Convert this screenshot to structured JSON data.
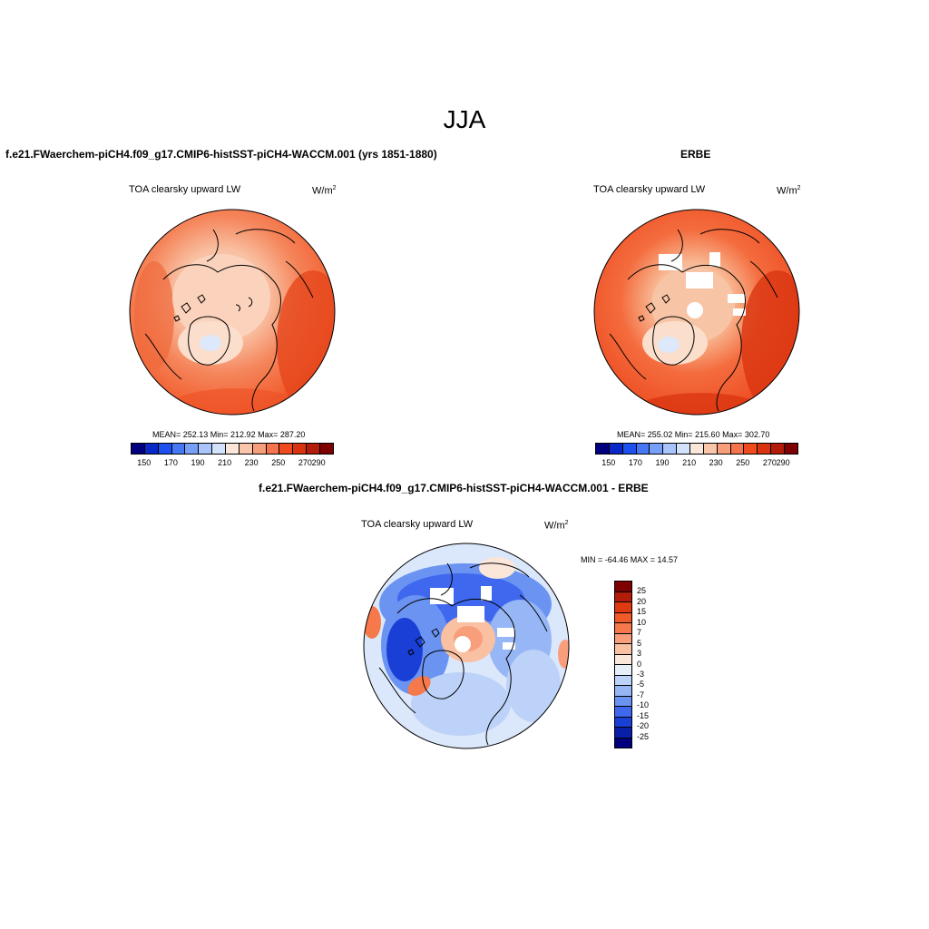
{
  "figure": {
    "title": "JJA"
  },
  "panels": {
    "model": {
      "heading": "f.e21.FWaerchem-piCH4.f09_g17.CMIP6-histSST-piCH4-WACCM.001 (yrs 1851-1880)",
      "variable": "TOA clearsky upward LW",
      "units_base": "W/m",
      "units_exp": "2",
      "stats": "MEAN= 252.13  Min= 212.92  Max= 287.20"
    },
    "obs": {
      "heading": "ERBE",
      "variable": "TOA clearsky upward LW",
      "units_base": "W/m",
      "units_exp": "2",
      "stats": "MEAN= 255.02  Min= 215.60  Max= 302.70"
    },
    "diff": {
      "heading": "f.e21.FWaerchem-piCH4.f09_g17.CMIP6-histSST-piCH4-WACCM.001 - ERBE",
      "variable": "TOA clearsky upward LW",
      "units_base": "W/m",
      "units_exp": "2",
      "stats": "MIN = -64.46 MAX =  14.57"
    }
  },
  "colorbars": {
    "absolute": {
      "tick_labels": [
        "150",
        "170",
        "190",
        "210",
        "230",
        "250",
        "270",
        "290"
      ],
      "colors": [
        "#00007f",
        "#0a28c8",
        "#1e50f0",
        "#4678f5",
        "#789ff8",
        "#a8c4fa",
        "#d2e2fb",
        "#fbe6da",
        "#f9c5ab",
        "#f89e7b",
        "#f5744d",
        "#f04b1f",
        "#da3310",
        "#b41c0a",
        "#7f0000"
      ]
    },
    "difference": {
      "tick_labels": [
        "25",
        "20",
        "15",
        "10",
        "7",
        "5",
        "3",
        "0",
        "-3",
        "-5",
        "-7",
        "-10",
        "-15",
        "-20",
        "-25"
      ],
      "colors": [
        "#7f0000",
        "#b41c0a",
        "#e03a12",
        "#f05a28",
        "#f5794a",
        "#f89e7b",
        "#f9c0a2",
        "#fbe6da",
        "#e6eefa",
        "#bcd2f8",
        "#96b6f6",
        "#6b93f2",
        "#3f68ee",
        "#1a3fd6",
        "#0a1fa8",
        "#00007f"
      ]
    }
  },
  "chart_data": [
    {
      "type": "heatmap",
      "title": "f.e21.FWaerchem-piCH4.f09_g17.CMIP6-histSST-piCH4-WACCM.001 (yrs 1851-1880)",
      "projection": "north polar stereographic",
      "variable": "TOA clearsky upward LW",
      "units": "W/m2",
      "mean": 252.13,
      "min": 212.92,
      "max": 287.2,
      "contour_levels": [
        150,
        160,
        170,
        180,
        190,
        200,
        210,
        220,
        230,
        240,
        250,
        260,
        270,
        280,
        290
      ]
    },
    {
      "type": "heatmap",
      "title": "ERBE",
      "projection": "north polar stereographic",
      "variable": "TOA clearsky upward LW",
      "units": "W/m2",
      "mean": 255.02,
      "min": 215.6,
      "max": 302.7,
      "contour_levels": [
        150,
        160,
        170,
        180,
        190,
        200,
        210,
        220,
        230,
        240,
        250,
        260,
        270,
        280,
        290
      ]
    },
    {
      "type": "heatmap",
      "title": "f.e21.FWaerchem-piCH4.f09_g17.CMIP6-histSST-piCH4-WACCM.001 - ERBE",
      "projection": "north polar stereographic",
      "variable": "TOA clearsky upward LW",
      "units": "W/m2",
      "min": -64.46,
      "max": 14.57,
      "contour_levels": [
        -25,
        -20,
        -15,
        -10,
        -7,
        -5,
        -3,
        0,
        3,
        5,
        7,
        10,
        15,
        20,
        25
      ]
    }
  ]
}
